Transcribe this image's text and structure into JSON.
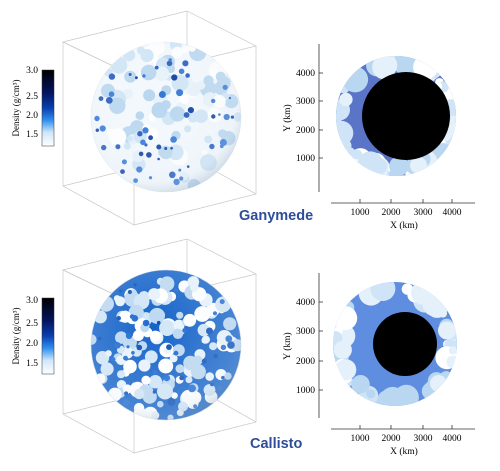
{
  "panels": [
    {
      "moon": "Ganymede",
      "colorbar": {
        "label": "Density (g/cm³)",
        "ticks": [
          "3.0",
          "2.5",
          "2.0",
          "1.5"
        ]
      },
      "cross_section": {
        "ylabel": "Y (km)",
        "xlabel": "X (km)",
        "yticks": [
          "4000",
          "3000",
          "2000",
          "1000"
        ],
        "xticks": [
          "1000",
          "2000",
          "3000",
          "4000"
        ]
      },
      "colors": {
        "mantle": "#5a74c7",
        "core": "#000000",
        "surface": "#ffffff",
        "dense": "#1f56bf",
        "light": "#cfe4f5"
      }
    },
    {
      "moon": "Callisto",
      "colorbar": {
        "label": "Density (g/cm³)",
        "ticks": [
          "3.0",
          "2.5",
          "2.0",
          "1.5"
        ]
      },
      "cross_section": {
        "ylabel": "Y (km)",
        "xlabel": "X (km)",
        "yticks": [
          "4000",
          "3000",
          "2000",
          "1000"
        ],
        "xticks": [
          "1000",
          "2000",
          "3000",
          "4000"
        ]
      },
      "colors": {
        "mantle": "#5f8ee0",
        "core": "#000000",
        "surface": "#ffffff",
        "dense": "#0f5fc9",
        "light": "#d2e6f7"
      }
    }
  ]
}
